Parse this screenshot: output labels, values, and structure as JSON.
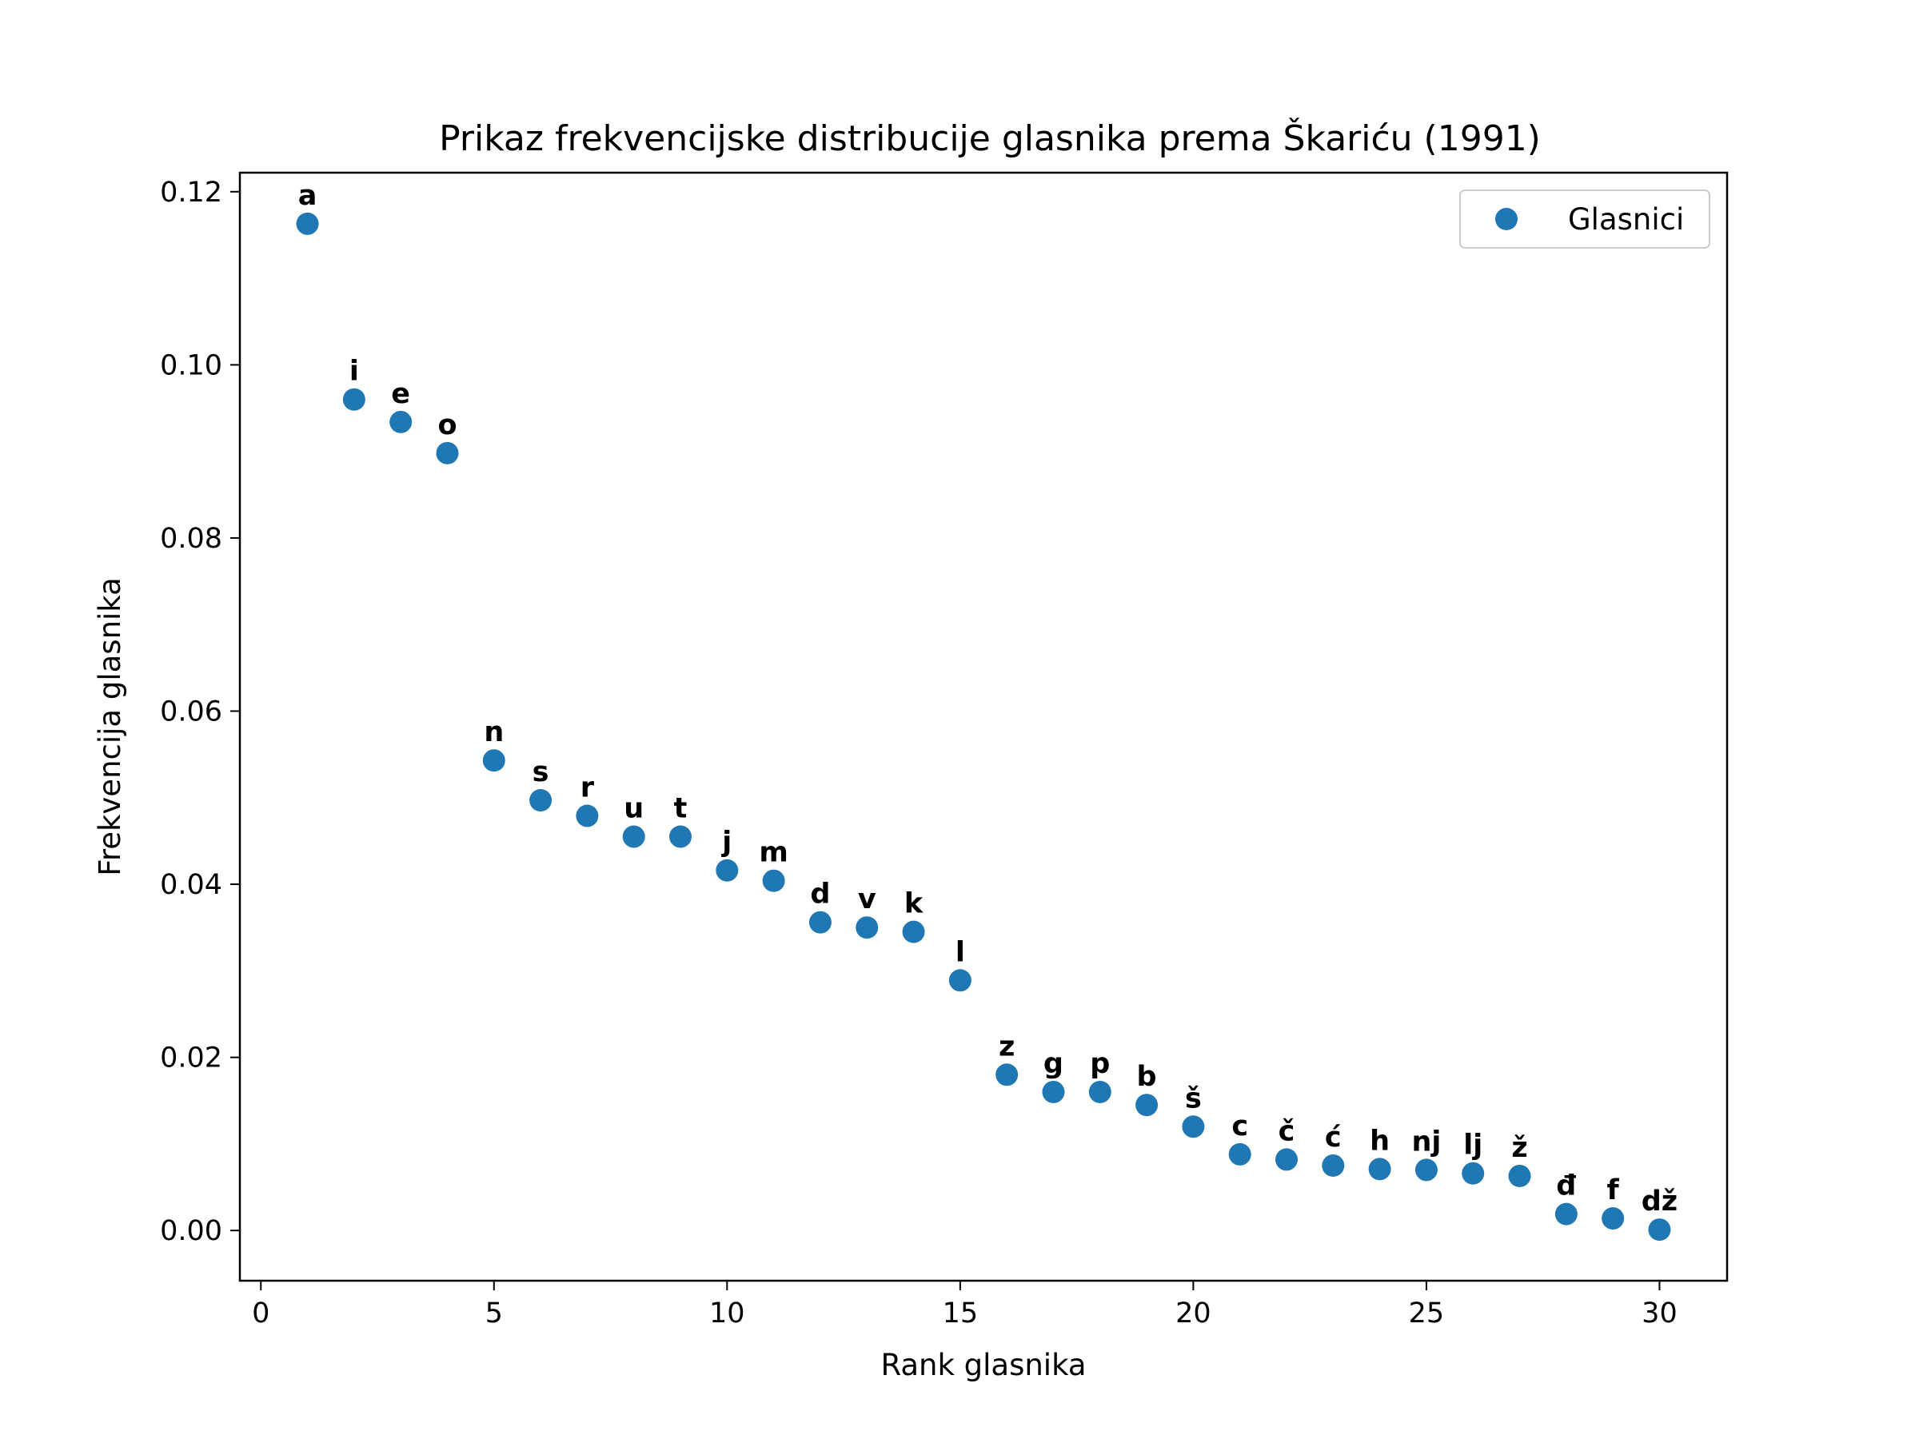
{
  "chart_data": {
    "type": "scatter",
    "title": "Prikaz frekvencijske distribucije glasnika prema Škariću (1991)",
    "xlabel": "Rank glasnika",
    "ylabel": "Frekvencija glasnika",
    "xlim": [
      -0.45,
      31.45
    ],
    "ylim": [
      -0.0058,
      0.1222
    ],
    "xticks": [
      0,
      5,
      10,
      15,
      20,
      25,
      30
    ],
    "xtick_labels": [
      "0",
      "5",
      "10",
      "15",
      "20",
      "25",
      "30"
    ],
    "yticks": [
      0.0,
      0.02,
      0.04,
      0.06,
      0.08,
      0.1,
      0.12
    ],
    "ytick_labels": [
      "0.00",
      "0.02",
      "0.04",
      "0.06",
      "0.08",
      "0.10",
      "0.12"
    ],
    "grid": false,
    "legend": {
      "position": "top-right"
    },
    "series": [
      {
        "name": "Glasnici",
        "color": "#1f77b4",
        "x": [
          1,
          2,
          3,
          4,
          5,
          6,
          7,
          8,
          9,
          10,
          11,
          12,
          13,
          14,
          15,
          16,
          17,
          18,
          19,
          20,
          21,
          22,
          23,
          24,
          25,
          26,
          27,
          28,
          29,
          30
        ],
        "y": [
          0.1163,
          0.096,
          0.0934,
          0.0898,
          0.0543,
          0.0497,
          0.0479,
          0.0455,
          0.0455,
          0.0416,
          0.0404,
          0.0356,
          0.035,
          0.0345,
          0.0289,
          0.018,
          0.016,
          0.016,
          0.0145,
          0.012,
          0.0088,
          0.0082,
          0.0075,
          0.0071,
          0.007,
          0.0066,
          0.0063,
          0.0019,
          0.0014,
          0.0001
        ],
        "labels": [
          "a",
          "i",
          "e",
          "o",
          "n",
          "s",
          "r",
          "u",
          "t",
          "j",
          "m",
          "d",
          "v",
          "k",
          "l",
          "z",
          "g",
          "p",
          "b",
          "š",
          "c",
          "č",
          "ć",
          "h",
          "nj",
          "lj",
          "ž",
          "đ",
          "f",
          "dž"
        ]
      }
    ]
  }
}
